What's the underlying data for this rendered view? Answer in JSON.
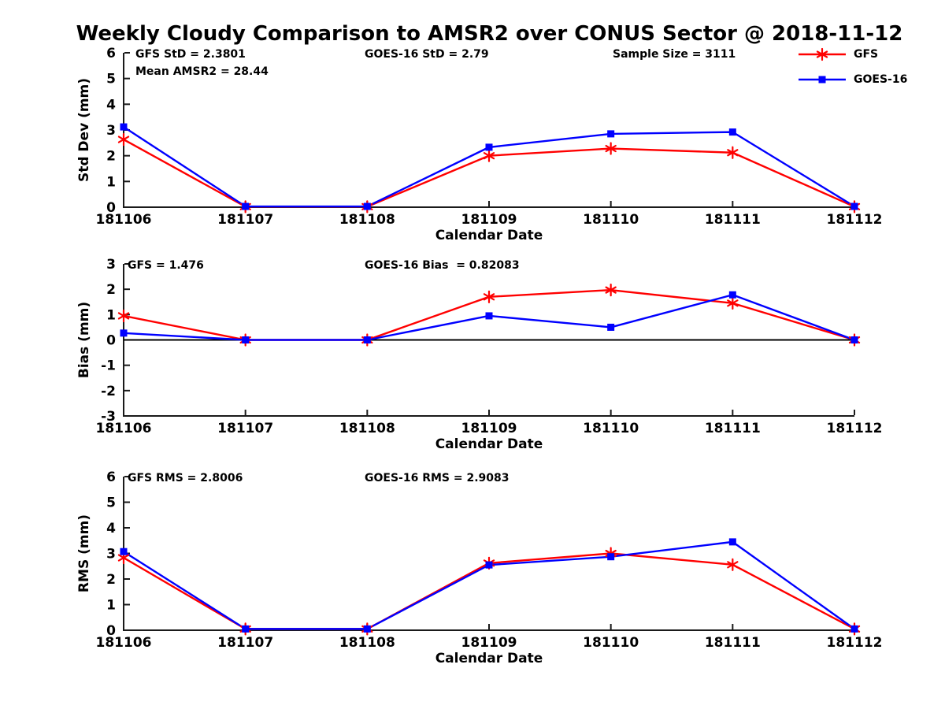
{
  "title": "Weekly Cloudy Comparison to AMSR2 over CONUS Sector @ 2018-11-12",
  "colors": {
    "gfs": "#ff0000",
    "goes16": "#0000ff",
    "axis": "#1a1a1a",
    "zero_line": "#000000",
    "text": "#000000"
  },
  "legend": {
    "entries": [
      {
        "label": "GFS",
        "series_key": "gfs",
        "marker": "asterisk"
      },
      {
        "label": "GOES-16",
        "series_key": "goes16",
        "marker": "square"
      }
    ]
  },
  "chart_data": [
    {
      "type": "line",
      "ylabel": "Std Dev (mm)",
      "xlabel": "Calendar Date",
      "categories": [
        "181106",
        "181107",
        "181108",
        "181109",
        "181110",
        "181111",
        "181112"
      ],
      "ylim": [
        0,
        6
      ],
      "yticks": [
        0,
        1,
        2,
        3,
        4,
        5,
        6
      ],
      "zero_line": false,
      "grid": false,
      "legend_position": "top-right-outside",
      "annotations": [
        {
          "text": "GFS StD = 2.3801",
          "slot": "left",
          "row": 1
        },
        {
          "text": "Mean AMSR2 = 28.44",
          "slot": "left",
          "row": 2
        },
        {
          "text": "GOES-16 StD = 2.79",
          "slot": "center",
          "row": 1
        },
        {
          "text": "Sample Size = 3111",
          "slot": "right",
          "row": 1
        }
      ],
      "series": [
        {
          "name": "GFS",
          "key": "gfs",
          "marker": "asterisk",
          "values": [
            2.63,
            0.02,
            0.02,
            2.0,
            2.28,
            2.12,
            0.02
          ]
        },
        {
          "name": "GOES-16",
          "key": "goes16",
          "marker": "square",
          "values": [
            3.12,
            0.03,
            0.03,
            2.33,
            2.85,
            2.92,
            0.03
          ]
        }
      ]
    },
    {
      "type": "line",
      "ylabel": "Bias (mm)",
      "xlabel": "Calendar Date",
      "categories": [
        "181106",
        "181107",
        "181108",
        "181109",
        "181110",
        "181111",
        "181112"
      ],
      "ylim": [
        -3,
        3
      ],
      "yticks": [
        -3,
        -2,
        -1,
        0,
        1,
        2,
        3
      ],
      "zero_line": true,
      "grid": false,
      "annotations": [
        {
          "text": "GFS = 1.476",
          "slot": "left",
          "row": 1
        },
        {
          "text": "GOES-16 Bias  = 0.82083",
          "slot": "center",
          "row": 1
        }
      ],
      "series": [
        {
          "name": "GFS",
          "key": "gfs",
          "marker": "asterisk",
          "values": [
            0.95,
            0.0,
            0.0,
            1.7,
            1.97,
            1.45,
            0.0
          ]
        },
        {
          "name": "GOES-16",
          "key": "goes16",
          "marker": "square",
          "values": [
            0.27,
            0.0,
            0.0,
            0.95,
            0.5,
            1.78,
            0.0
          ]
        }
      ]
    },
    {
      "type": "line",
      "ylabel": "RMS (mm)",
      "xlabel": "Calendar Date",
      "categories": [
        "181106",
        "181107",
        "181108",
        "181109",
        "181110",
        "181111",
        "181112"
      ],
      "ylim": [
        0,
        6
      ],
      "yticks": [
        0,
        1,
        2,
        3,
        4,
        5,
        6
      ],
      "zero_line": false,
      "grid": false,
      "annotations": [
        {
          "text": "GFS RMS = 2.8006",
          "slot": "left",
          "row": 1
        },
        {
          "text": "GOES-16 RMS = 2.9083",
          "slot": "center",
          "row": 1
        }
      ],
      "series": [
        {
          "name": "GFS",
          "key": "gfs",
          "marker": "asterisk",
          "values": [
            2.83,
            0.05,
            0.05,
            2.62,
            3.0,
            2.56,
            0.05
          ]
        },
        {
          "name": "GOES-16",
          "key": "goes16",
          "marker": "square",
          "values": [
            3.07,
            0.05,
            0.05,
            2.55,
            2.87,
            3.45,
            0.05
          ]
        }
      ]
    }
  ]
}
